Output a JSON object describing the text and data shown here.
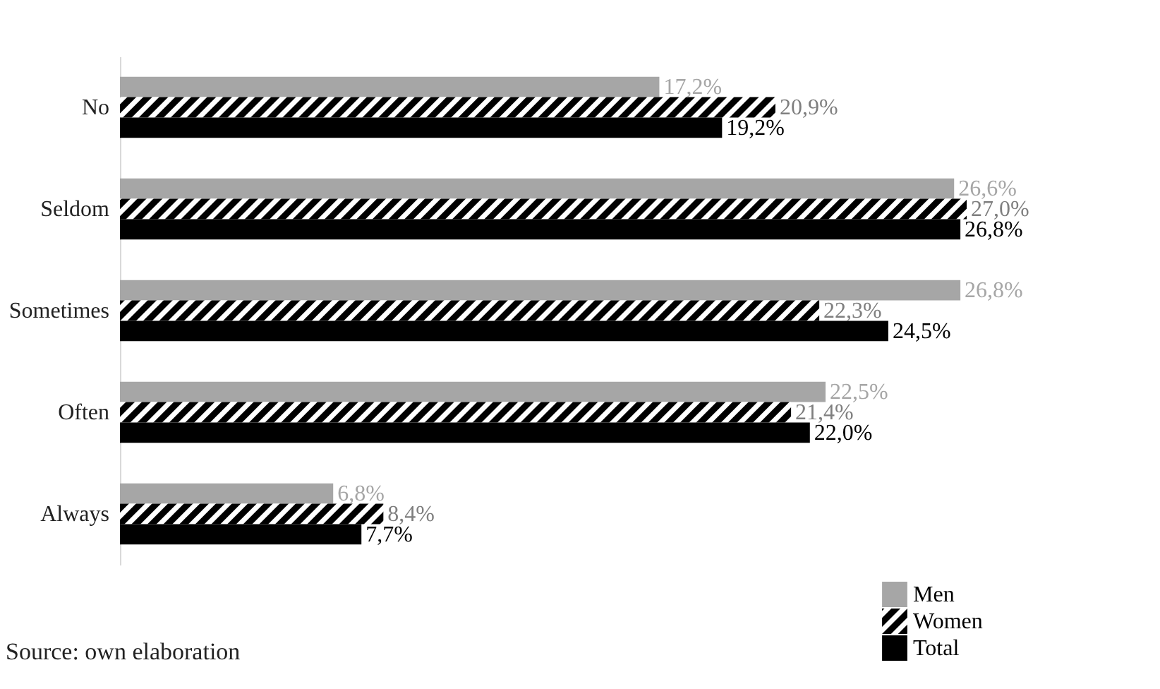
{
  "chart_data": {
    "type": "bar",
    "orientation": "horizontal",
    "categories": [
      "No",
      "Seldom",
      "Sometimes",
      "Often",
      "Always"
    ],
    "series": [
      {
        "name": "Men",
        "color": "#a6a6a6",
        "values": [
          17.2,
          26.6,
          26.8,
          22.5,
          6.8
        ],
        "value_labels": [
          "17,2%",
          "26,6%",
          "26,8%",
          "22,5%",
          "6,8%"
        ]
      },
      {
        "name": "Women",
        "color": "#000000",
        "values": [
          20.9,
          27.0,
          22.3,
          21.4,
          8.4
        ],
        "value_labels": [
          "20,9%",
          "27,0%",
          "22,3%",
          "21,4%",
          "8,4%"
        ]
      },
      {
        "name": "Total",
        "color": "#000000",
        "values": [
          19.2,
          26.8,
          24.5,
          22.0,
          7.7
        ],
        "value_labels": [
          "19,2%",
          "26,8%",
          "24,5%",
          "22,0%",
          "7,7%"
        ]
      }
    ],
    "legend": "bottom right",
    "grid": false,
    "annotations": [
      "Source: own elaboration"
    ]
  }
}
